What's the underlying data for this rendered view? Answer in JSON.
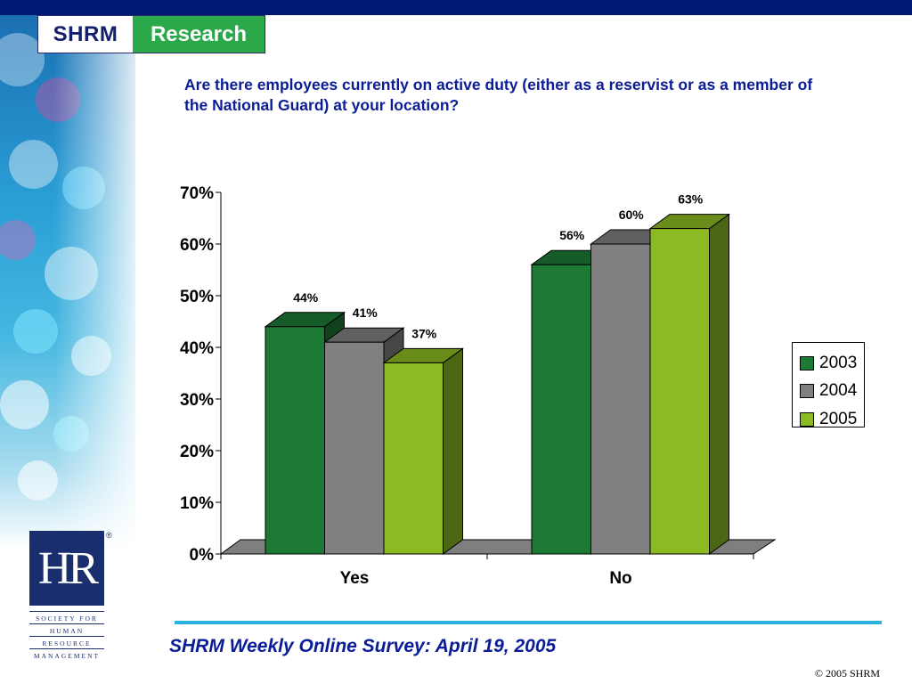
{
  "header": {
    "logo_left": "SHRM",
    "logo_right": "Research",
    "logo_right_color": "#2aa84a"
  },
  "question": "Are there employees currently on active duty (either as a reservist or as a member of the National Guard) at your location?",
  "chart_data": {
    "type": "bar",
    "title": "",
    "xlabel": "",
    "ylabel": "",
    "categories": [
      "Yes",
      "No"
    ],
    "series": [
      {
        "name": "2003",
        "values": [
          44,
          56
        ],
        "labels": [
          "44%",
          "56%"
        ],
        "color": "#1d7a35"
      },
      {
        "name": "2004",
        "values": [
          41,
          60
        ],
        "labels": [
          "41%",
          "60%"
        ],
        "color": "#808080"
      },
      {
        "name": "2005",
        "values": [
          37,
          63
        ],
        "labels": [
          "37%",
          "63%"
        ],
        "color": "#8cba22"
      }
    ],
    "ylim": [
      0,
      70
    ],
    "yticks": [
      "0%",
      "10%",
      "20%",
      "30%",
      "40%",
      "50%",
      "60%",
      "70%"
    ],
    "grid": false,
    "three_d": true,
    "legend_position": "right"
  },
  "footer": {
    "title": "SHRM Weekly Online Survey: April 19, 2005",
    "copyright": "© 2005 SHRM"
  },
  "hr_logo": {
    "letters": "HR",
    "reg": "®",
    "lines": [
      "SOCIETY FOR",
      "HUMAN",
      "RESOURCE",
      "MANAGEMENT"
    ]
  }
}
